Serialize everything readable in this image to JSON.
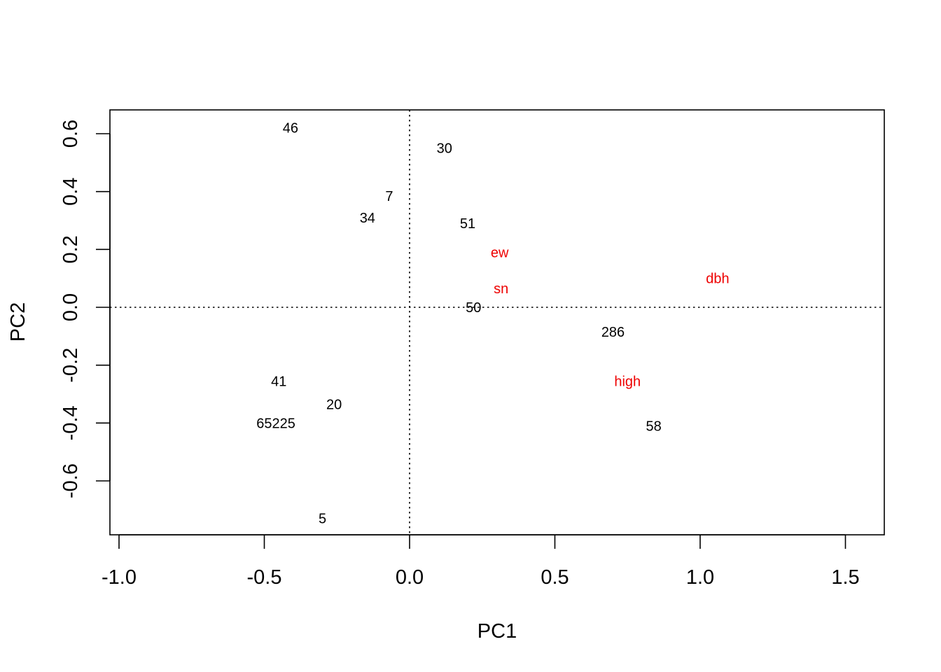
{
  "chart_data": {
    "type": "scatter",
    "title": "",
    "xlabel": "PC1",
    "ylabel": "PC2",
    "xlim": [
      -1.0,
      1.6
    ],
    "ylim": [
      -0.78,
      0.68
    ],
    "x_ticks": [
      -1.0,
      -0.5,
      0.0,
      0.5,
      1.0,
      1.5
    ],
    "x_tick_labels": [
      "-1.0",
      "-0.5",
      "0.0",
      "0.5",
      "1.0",
      "1.5"
    ],
    "y_ticks": [
      -0.6,
      -0.4,
      -0.2,
      0.0,
      0.2,
      0.4,
      0.6
    ],
    "y_tick_labels": [
      "-0.6",
      "-0.4",
      "-0.2",
      "0.0",
      "0.2",
      "0.4",
      "0.6"
    ],
    "reference_lines": {
      "x": 0.0,
      "y": 0.0,
      "style": "dotted"
    },
    "grid": false,
    "colors": {
      "observations": "#000000",
      "variables": "#ee0000"
    },
    "series": [
      {
        "kind": "observations",
        "points": [
          {
            "label": "46",
            "x": -0.41,
            "y": 0.62
          },
          {
            "label": "30",
            "x": 0.12,
            "y": 0.55
          },
          {
            "label": "7",
            "x": -0.07,
            "y": 0.385
          },
          {
            "label": "34",
            "x": -0.145,
            "y": 0.31
          },
          {
            "label": "51",
            "x": 0.2,
            "y": 0.29
          },
          {
            "label": "50",
            "x": 0.22,
            "y": 0.0
          },
          {
            "label": "286",
            "x": 0.7,
            "y": -0.085
          },
          {
            "label": "41",
            "x": -0.45,
            "y": -0.255
          },
          {
            "label": "20",
            "x": -0.26,
            "y": -0.335
          },
          {
            "label": "65225",
            "x": -0.46,
            "y": -0.4
          },
          {
            "label": "58",
            "x": 0.84,
            "y": -0.41
          },
          {
            "label": "5",
            "x": -0.3,
            "y": -0.73
          }
        ]
      },
      {
        "kind": "variables",
        "points": [
          {
            "label": "ew",
            "x": 0.31,
            "y": 0.19
          },
          {
            "label": "sn",
            "x": 0.315,
            "y": 0.065
          },
          {
            "label": "dbh",
            "x": 1.06,
            "y": 0.1
          },
          {
            "label": "high",
            "x": 0.75,
            "y": -0.255
          }
        ]
      }
    ]
  }
}
